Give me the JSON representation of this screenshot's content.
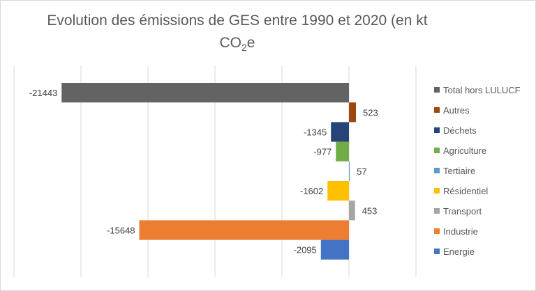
{
  "chart_data": {
    "type": "bar",
    "orientation": "horizontal",
    "title": "Evolution des émissions de GES entre 1990 et 2020 (en kt CO₂e)",
    "title_main": "Evolution des émissions de GES entre 1990 et 2020 (en kt",
    "title_unit_prefix": "CO",
    "title_unit_sub": "2",
    "title_unit_suffix": "e",
    "xlim": [
      -25000,
      5000
    ],
    "grid": true,
    "tick_step": 5000,
    "legend_position": "right",
    "series": [
      {
        "name": "Total hors LULUCF",
        "value": -21443,
        "color": "#636363"
      },
      {
        "name": "Autres",
        "value": 523,
        "color": "#9e480e"
      },
      {
        "name": "Déchets",
        "value": -1345,
        "color": "#264478"
      },
      {
        "name": "Agriculture",
        "value": -977,
        "color": "#70ad47"
      },
      {
        "name": "Tertiaire",
        "value": 57,
        "color": "#5b9bd5"
      },
      {
        "name": "Résidentiel",
        "value": -1602,
        "color": "#ffc000"
      },
      {
        "name": "Transport",
        "value": 453,
        "color": "#a5a5a5"
      },
      {
        "name": "Industrie",
        "value": -15648,
        "color": "#ed7d31"
      },
      {
        "name": "Energie",
        "value": -2095,
        "color": "#4472c4"
      }
    ]
  }
}
